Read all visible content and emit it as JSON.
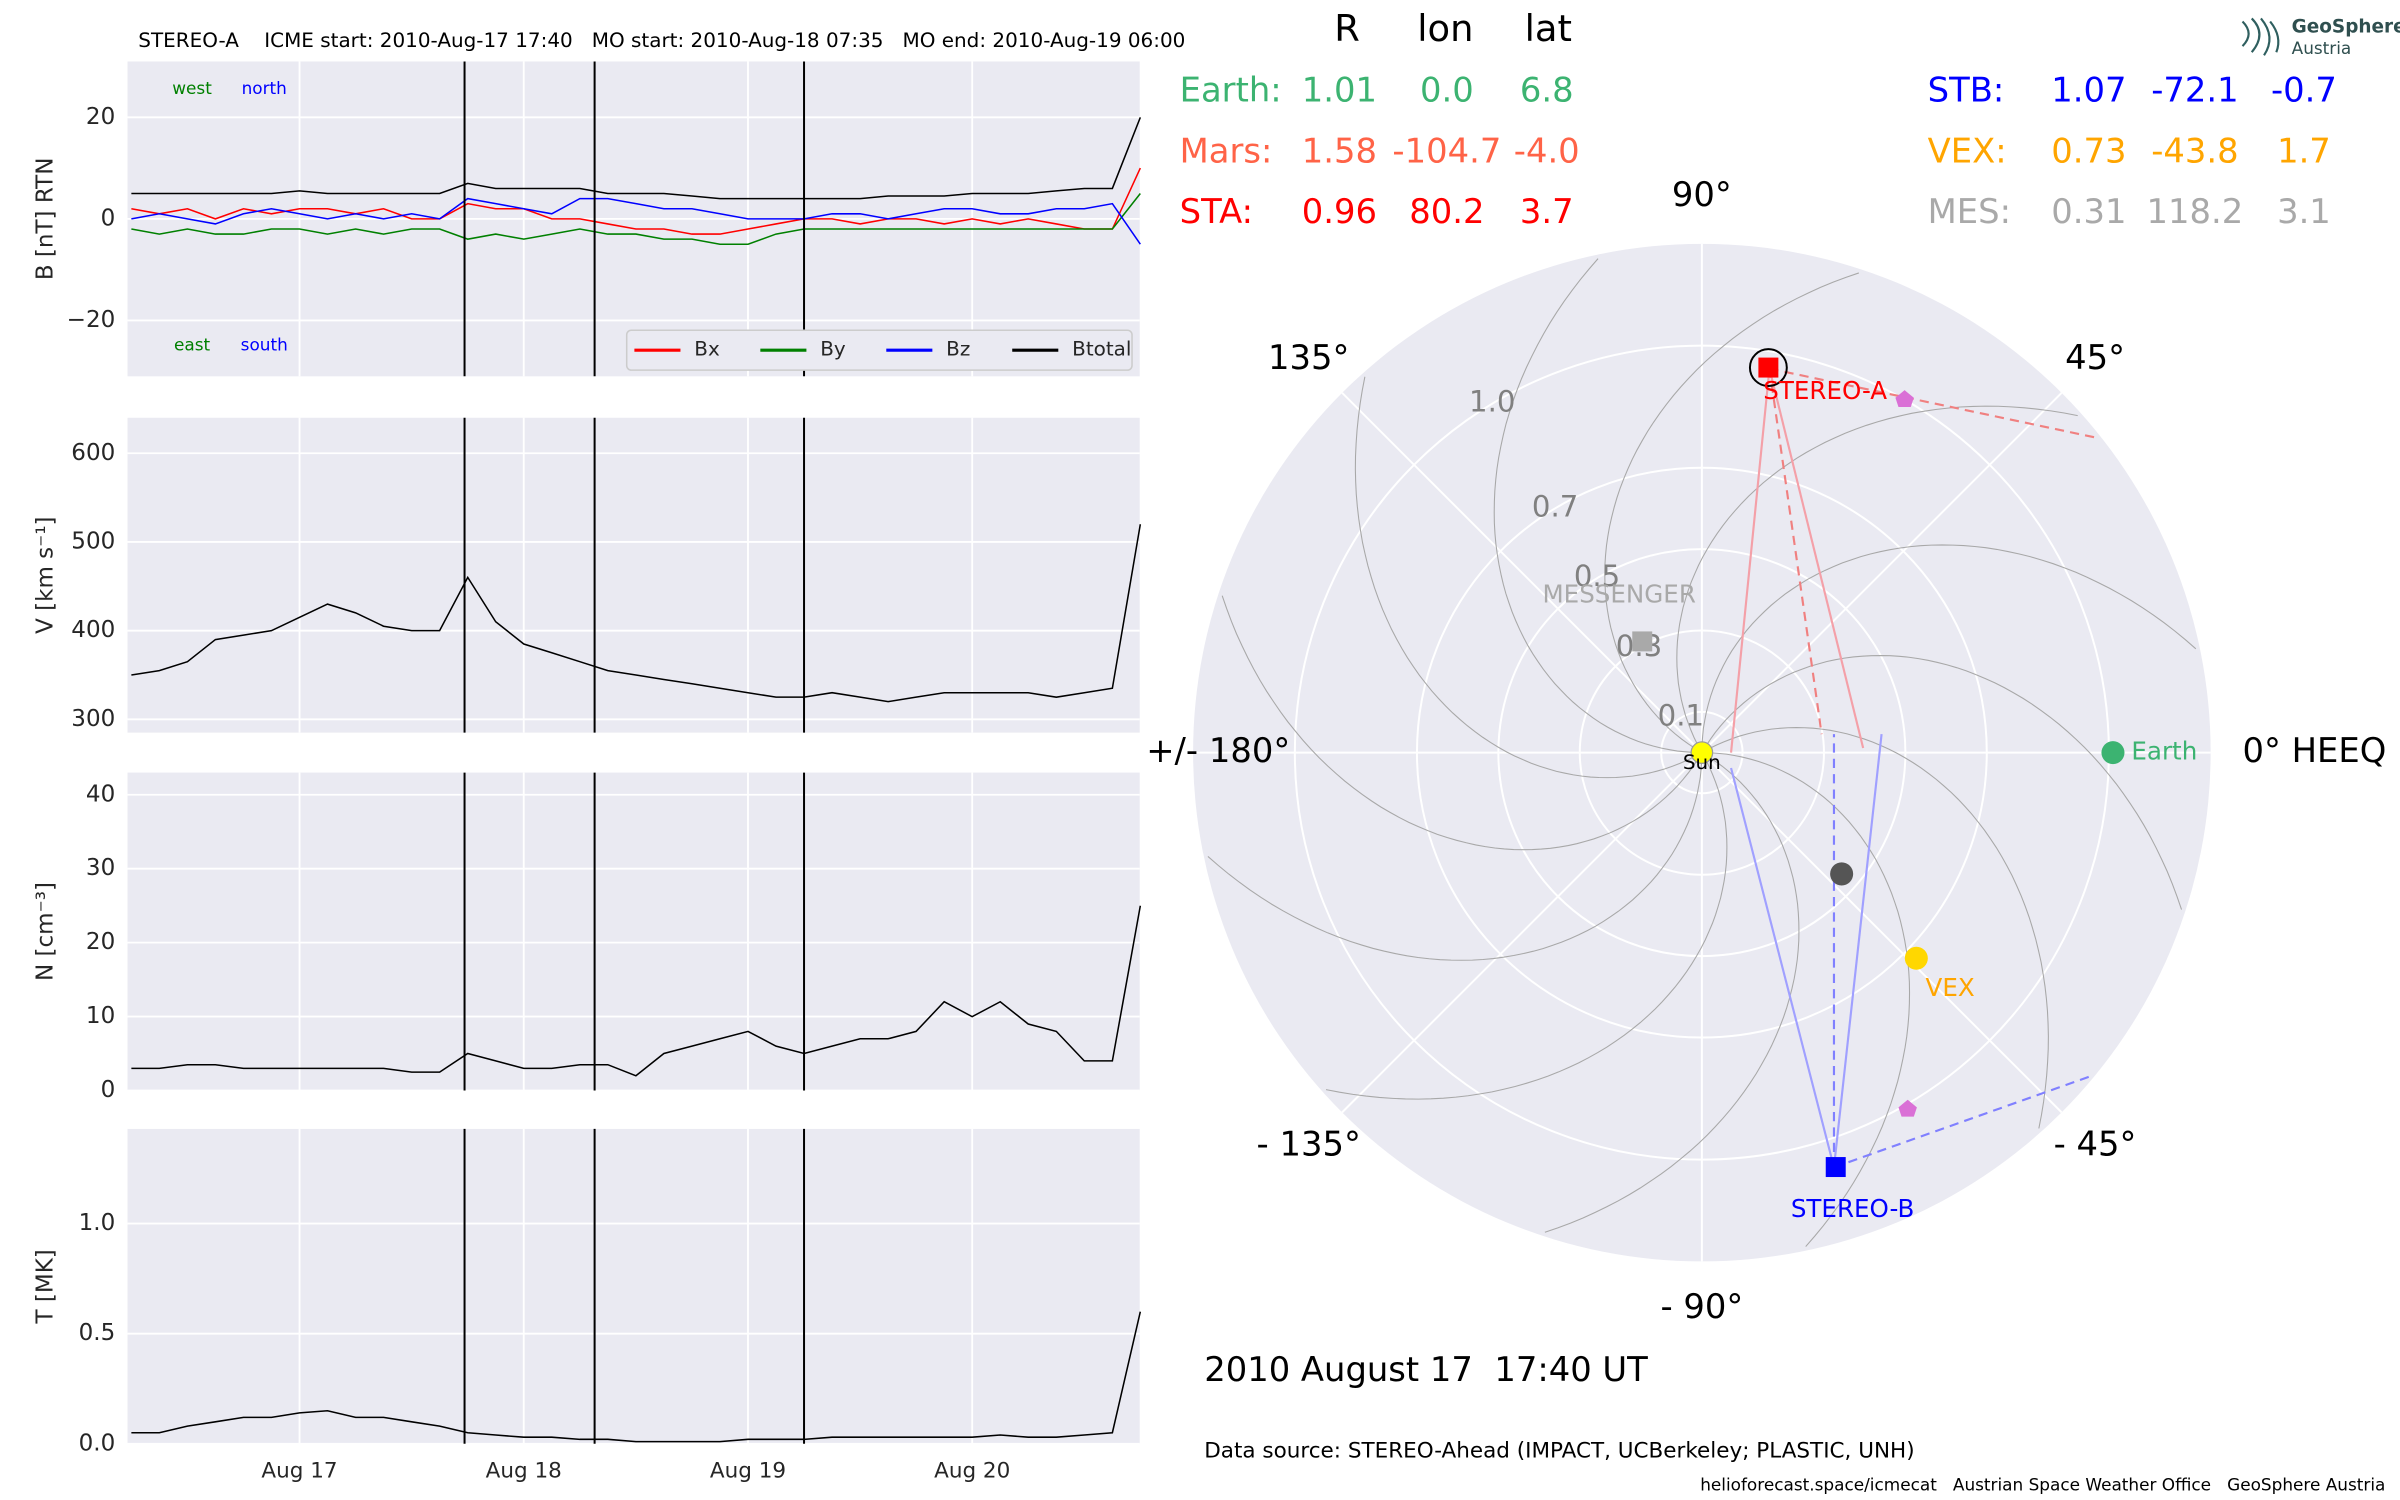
{
  "chart_data": [
    {
      "type": "line",
      "title": "STEREO-A    ICME start: 2010-Aug-17 17:40   MO start: 2010-Aug-18 07:35   MO end: 2010-Aug-19 06:00",
      "ylabel": "B [nT] RTN",
      "xlim": [
        16.233,
        20.747
      ],
      "ylim": [
        -31,
        31
      ],
      "yticks": [
        {
          "value": -20,
          "label": "−20"
        },
        0,
        20
      ],
      "grid": true,
      "legend": "lower right",
      "annotations": [
        {
          "text": "west",
          "color": "#008000"
        },
        {
          "text": "north",
          "color": "#0000ff"
        },
        {
          "text": "east",
          "color": "#008000"
        },
        {
          "text": "south",
          "color": "#0000ff"
        }
      ],
      "x": [
        16.25,
        16.375,
        16.5,
        16.625,
        16.75,
        16.875,
        17,
        17.125,
        17.25,
        17.375,
        17.5,
        17.625,
        17.75,
        17.875,
        18,
        18.125,
        18.25,
        18.375,
        18.5,
        18.625,
        18.75,
        18.875,
        19,
        19.125,
        19.25,
        19.375,
        19.5,
        19.625,
        19.75,
        19.875,
        20,
        20.125,
        20.25,
        20.375,
        20.5,
        20.625,
        20.75
      ],
      "series": [
        {
          "name": "Bx",
          "color": "#ff0000",
          "values": [
            2,
            1,
            2,
            0,
            2,
            1,
            2,
            2,
            1,
            2,
            0,
            0,
            3,
            2,
            2,
            0,
            0,
            -1,
            -2,
            -2,
            -3,
            -3,
            -2,
            -1,
            0,
            0,
            -1,
            0,
            0,
            -1,
            0,
            -1,
            0,
            -1,
            -2,
            -2,
            10
          ]
        },
        {
          "name": "By",
          "color": "#008000",
          "values": [
            -2,
            -3,
            -2,
            -3,
            -3,
            -2,
            -2,
            -3,
            -2,
            -3,
            -2,
            -2,
            -4,
            -3,
            -4,
            -3,
            -2,
            -3,
            -3,
            -4,
            -4,
            -5,
            -5,
            -3,
            -2,
            -2,
            -2,
            -2,
            -2,
            -2,
            -2,
            -2,
            -2,
            -2,
            -2,
            -2,
            5
          ]
        },
        {
          "name": "Bz",
          "color": "#0000ff",
          "values": [
            0,
            1,
            0,
            -1,
            1,
            2,
            1,
            0,
            1,
            0,
            1,
            0,
            4,
            3,
            2,
            1,
            4,
            4,
            3,
            2,
            2,
            1,
            0,
            0,
            0,
            1,
            1,
            0,
            1,
            2,
            2,
            1,
            1,
            2,
            2,
            3,
            -5
          ]
        },
        {
          "name": "Btotal",
          "color": "#000000",
          "values": [
            5,
            5,
            5,
            5,
            5,
            5,
            5.5,
            5,
            5,
            5,
            5,
            5,
            7,
            6,
            6,
            6,
            6,
            5,
            5,
            5,
            4.5,
            4,
            4,
            4,
            4,
            4,
            4,
            4.5,
            4.5,
            4.5,
            5,
            5,
            5,
            5.5,
            6,
            6,
            20
          ]
        }
      ]
    },
    {
      "type": "line",
      "ylabel": "V [km s⁻¹]",
      "xlim": [
        16.233,
        20.747
      ],
      "ylim": [
        285,
        640
      ],
      "yticks": [
        300,
        400,
        500,
        600
      ],
      "grid": true,
      "x": [
        16.25,
        16.375,
        16.5,
        16.625,
        16.75,
        16.875,
        17,
        17.125,
        17.25,
        17.375,
        17.5,
        17.625,
        17.75,
        17.875,
        18,
        18.125,
        18.25,
        18.375,
        18.5,
        18.625,
        18.75,
        18.875,
        19,
        19.125,
        19.25,
        19.375,
        19.5,
        19.625,
        19.75,
        19.875,
        20,
        20.125,
        20.25,
        20.375,
        20.5,
        20.625,
        20.75
      ],
      "series": [
        {
          "name": "V",
          "color": "#000000",
          "values": [
            350,
            355,
            365,
            390,
            395,
            400,
            415,
            430,
            420,
            405,
            400,
            400,
            460,
            410,
            385,
            375,
            365,
            355,
            350,
            345,
            340,
            335,
            330,
            325,
            325,
            330,
            325,
            320,
            325,
            330,
            330,
            330,
            330,
            325,
            330,
            335,
            520
          ]
        }
      ]
    },
    {
      "type": "line",
      "ylabel": "N [cm⁻³]",
      "xlim": [
        16.233,
        20.747
      ],
      "ylim": [
        0,
        43
      ],
      "yticks": [
        0,
        10,
        20,
        30,
        40
      ],
      "grid": true,
      "x": [
        16.25,
        16.375,
        16.5,
        16.625,
        16.75,
        16.875,
        17,
        17.125,
        17.25,
        17.375,
        17.5,
        17.625,
        17.75,
        17.875,
        18,
        18.125,
        18.25,
        18.375,
        18.5,
        18.625,
        18.75,
        18.875,
        19,
        19.125,
        19.25,
        19.375,
        19.5,
        19.625,
        19.75,
        19.875,
        20,
        20.125,
        20.25,
        20.375,
        20.5,
        20.625,
        20.75
      ],
      "series": [
        {
          "name": "N",
          "color": "#000000",
          "values": [
            3,
            3,
            3.5,
            3.5,
            3,
            3,
            3,
            3,
            3,
            3,
            2.5,
            2.5,
            5,
            4,
            3,
            3,
            3.5,
            3.5,
            2,
            5,
            6,
            7,
            8,
            6,
            5,
            6,
            7,
            7,
            8,
            12,
            10,
            12,
            9,
            8,
            4,
            4,
            25
          ]
        }
      ]
    },
    {
      "type": "line",
      "ylabel": "T [MK]",
      "xlim": [
        16.233,
        20.747
      ],
      "ylim": [
        0,
        1.43
      ],
      "yticks": [
        {
          "value": 0,
          "label": "0.0"
        },
        0.5,
        {
          "value": 1,
          "label": "1.0"
        }
      ],
      "grid": true,
      "xticks": [
        {
          "value": 17,
          "label": "Aug 17"
        },
        {
          "value": 18,
          "label": "Aug 18"
        },
        {
          "value": 19,
          "label": "Aug 19"
        },
        {
          "value": 20,
          "label": "Aug 20"
        }
      ],
      "x": [
        16.25,
        16.375,
        16.5,
        16.625,
        16.75,
        16.875,
        17,
        17.125,
        17.25,
        17.375,
        17.5,
        17.625,
        17.75,
        17.875,
        18,
        18.125,
        18.25,
        18.375,
        18.5,
        18.625,
        18.75,
        18.875,
        19,
        19.125,
        19.25,
        19.375,
        19.5,
        19.625,
        19.75,
        19.875,
        20,
        20.125,
        20.25,
        20.375,
        20.5,
        20.625,
        20.75
      ],
      "series": [
        {
          "name": "T",
          "color": "#000000",
          "values": [
            0.05,
            0.05,
            0.08,
            0.1,
            0.12,
            0.12,
            0.14,
            0.15,
            0.12,
            0.12,
            0.1,
            0.08,
            0.05,
            0.04,
            0.03,
            0.03,
            0.02,
            0.02,
            0.01,
            0.01,
            0.01,
            0.01,
            0.02,
            0.02,
            0.02,
            0.03,
            0.03,
            0.03,
            0.03,
            0.03,
            0.03,
            0.04,
            0.03,
            0.03,
            0.04,
            0.05,
            0.6
          ]
        }
      ]
    },
    {
      "type": "polar",
      "columns": [
        "R",
        "lon",
        "lat"
      ],
      "rlim": [
        0,
        1.25
      ],
      "rticks": [
        0.1,
        0.3,
        0.5,
        0.7,
        {
          "value": 1,
          "label": "1.0"
        }
      ],
      "thetaticks": [
        {
          "value": 0,
          "label": "0° HEEQ"
        },
        {
          "value": 45,
          "label": "45°"
        },
        {
          "value": 90,
          "label": "90°"
        },
        {
          "value": 135,
          "label": "135°"
        },
        {
          "value": 180,
          "label": "+/- 180°"
        },
        {
          "value": -135,
          "label": "- 135°"
        },
        {
          "value": -90,
          "label": "- 90°"
        },
        {
          "value": -45,
          "label": "- 45°"
        }
      ],
      "sun_label": "Sun",
      "bodies": [
        {
          "name": "Earth:",
          "plot_label": "Earth",
          "color": "#3cb371",
          "marker": "circle",
          "values": [
            1.01,
            0,
            6.8
          ],
          "value_labels": [
            "1.01",
            "0.0",
            "6.8"
          ]
        },
        {
          "name": "Mars:",
          "color": "#ff6347",
          "marker": "circle",
          "values": [
            1.58,
            -104.7,
            -4
          ],
          "value_labels": [
            "1.58",
            "-104.7",
            "-4.0"
          ]
        },
        {
          "name": "STA:",
          "plot_label": "STEREO-A",
          "color": "#ff0000",
          "marker": "square",
          "values": [
            0.96,
            80.2,
            3.7
          ],
          "value_labels": [
            "0.96",
            "80.2",
            "3.7"
          ]
        },
        {
          "name": "STB:",
          "plot_label": "STEREO-B",
          "color": "#0000ff",
          "marker": "square",
          "values": [
            1.07,
            -72.1,
            -0.7
          ],
          "value_labels": [
            "1.07",
            "-72.1",
            "-0.7"
          ]
        },
        {
          "name": "VEX:",
          "plot_label": "VEX",
          "color": "#ffa500",
          "marker_color": "#ffd700",
          "marker": "circle",
          "values": [
            0.73,
            -43.8,
            1.7
          ],
          "value_labels": [
            "0.73",
            "-43.8",
            "1.7"
          ]
        },
        {
          "name": "MES:",
          "plot_label": "MESSENGER",
          "color": "#a9a9a9",
          "marker": "square",
          "values": [
            0.31,
            118.2,
            3.1
          ],
          "value_labels": [
            "0.31",
            "118.2",
            "3.1"
          ]
        }
      ]
    }
  ],
  "event_times": [
    17.736,
    18.316,
    19.25
  ],
  "caption": {
    "date": "2010 August 17  17:40 UT",
    "data_source": "Data source: STEREO-Ahead (IMPACT, UCBerkeley; PLASTIC, UNH)"
  },
  "footer": "helioforecast.space/icmecat   Austrian Space Weather Office   GeoSphere Austria",
  "logo": {
    "line1": "GeoSphere",
    "line2": "Austria"
  }
}
